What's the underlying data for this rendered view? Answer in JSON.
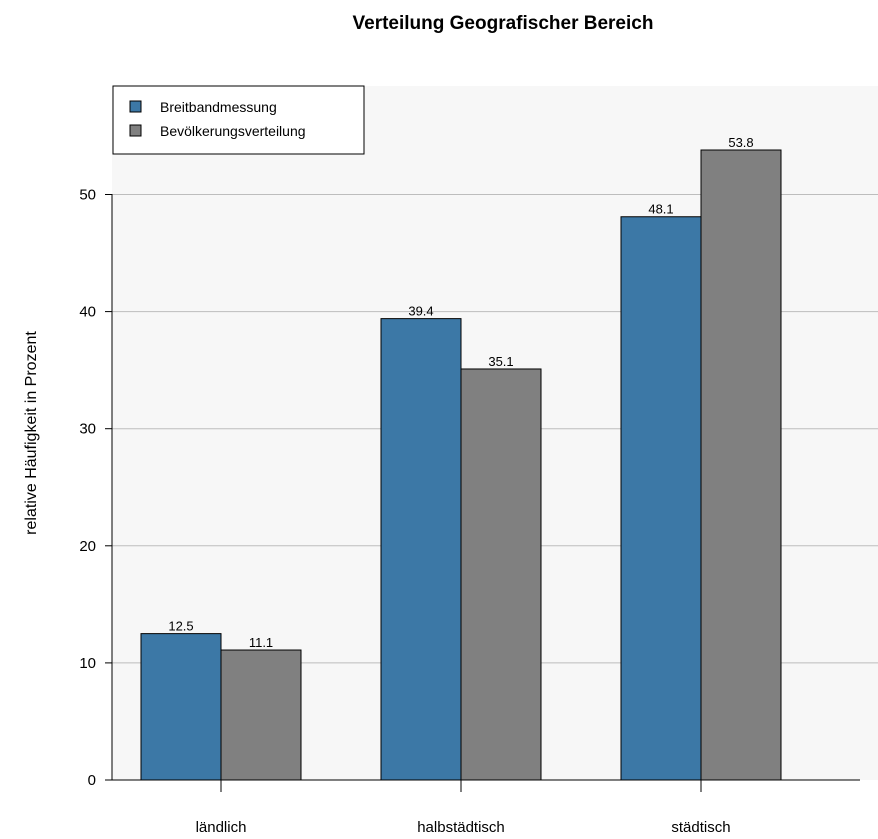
{
  "chart_data": {
    "type": "bar",
    "title": "Verteilung Geografischer Bereich",
    "xlabel": "",
    "ylabel": "relative Häufigkeit in Prozent",
    "categories": [
      "ländlich",
      "halbstädtisch",
      "städtisch"
    ],
    "series": [
      {
        "name": "Breitbandmessung",
        "values": [
          12.5,
          39.4,
          48.1
        ],
        "color": "#3c78a6"
      },
      {
        "name": "Bevölkerungsverteilung",
        "values": [
          11.1,
          35.1,
          53.8
        ],
        "color": "#808080"
      }
    ],
    "data_labels": [
      [
        "12.5",
        "39.4",
        "48.1"
      ],
      [
        "11.1",
        "35.1",
        "53.8"
      ]
    ],
    "ylim": [
      0,
      58
    ],
    "yticks": [
      0,
      10,
      20,
      30,
      40,
      50
    ],
    "grid": true,
    "legend_position": "top-left",
    "plot_background": "#f7f7f7",
    "grid_color": "#bdbdbd"
  }
}
